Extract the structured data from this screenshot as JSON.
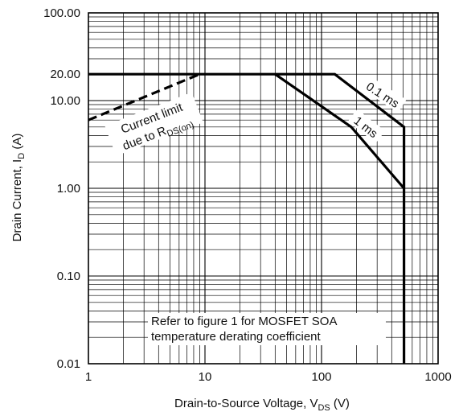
{
  "chart_data": {
    "type": "line",
    "x_scale": "log",
    "y_scale": "log",
    "xlim": [
      1,
      1000
    ],
    "ylim": [
      0.01,
      100
    ],
    "x_ticks": [
      "1",
      "10",
      "100",
      "1000"
    ],
    "y_ticks": [
      "100.00",
      "20.00",
      "10.00",
      "1.00",
      "0.10",
      "0.01"
    ],
    "x_tick_values": [
      1,
      10,
      100,
      1000
    ],
    "y_tick_values": [
      100,
      20,
      10,
      1,
      0.1,
      0.01
    ],
    "xlabel": {
      "main": "Drain-to-Source Voltage, V",
      "sub": "DS",
      "suffix": " (V)"
    },
    "ylabel": {
      "main": "Drain Current, I",
      "sub": "D",
      "suffix": " (A)"
    },
    "grid": "on",
    "series": [
      {
        "name": "",
        "style": "solid",
        "x": [
          1,
          130,
          510,
          510
        ],
        "y": [
          20,
          20,
          5,
          0.01
        ]
      },
      {
        "name": "",
        "style": "solid",
        "x": [
          40,
          180,
          510
        ],
        "y": [
          20,
          5,
          1
        ]
      },
      {
        "name": "",
        "style": "dashed",
        "x": [
          1,
          9
        ],
        "y": [
          6,
          20
        ]
      }
    ],
    "annotations": {
      "limit_line1": "Current limit",
      "limit_line2_main": "due to R",
      "limit_line2_sub": "DS(on)",
      "curve_01ms": "0.1 ms",
      "curve_1ms": "1 ms",
      "note_line1": "Refer to figure 1 for MOSFET SOA",
      "note_line2": "temperature derating coefficient"
    },
    "colors": {
      "line": "#000000",
      "grid": "#000000",
      "background": "#ffffff"
    }
  }
}
